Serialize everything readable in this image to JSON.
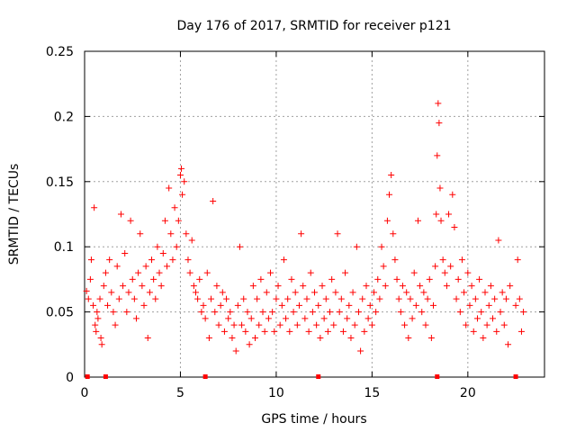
{
  "chart_data": {
    "type": "scatter",
    "title": "Day 176 of 2017, SRMTID for receiver p121",
    "xlabel": "GPS time / hours",
    "ylabel": "SRMTID / TECUs",
    "xlim": [
      0,
      24
    ],
    "ylim": [
      0,
      0.25
    ],
    "xticks": [
      0,
      5,
      10,
      15,
      20
    ],
    "xtick_labels": [
      "0",
      "5",
      "10",
      "15",
      "20"
    ],
    "yticks": [
      0,
      0.05,
      0.1,
      0.15,
      0.2,
      0.25
    ],
    "ytick_labels": [
      "0",
      "0.05",
      "0.1",
      "0.15",
      "0.2",
      "0.25"
    ],
    "grid": true,
    "marker": "+",
    "color": "#ff0000",
    "series": [
      {
        "name": "SRMTID",
        "points": [
          [
            0.1,
            0.066
          ],
          [
            0.2,
            0.06
          ],
          [
            0.3,
            0.075
          ],
          [
            0.35,
            0.09
          ],
          [
            0.45,
            0.055
          ],
          [
            0.5,
            0.13
          ],
          [
            0.55,
            0.04
          ],
          [
            0.6,
            0.035
          ],
          [
            0.65,
            0.05
          ],
          [
            0.7,
            0.045
          ],
          [
            0.8,
            0.06
          ],
          [
            0.85,
            0.03
          ],
          [
            0.9,
            0.025
          ],
          [
            1.0,
            0.07
          ],
          [
            1.1,
            0.08
          ],
          [
            1.2,
            0.055
          ],
          [
            1.3,
            0.09
          ],
          [
            1.4,
            0.065
          ],
          [
            1.5,
            0.05
          ],
          [
            1.6,
            0.04
          ],
          [
            1.7,
            0.085
          ],
          [
            1.8,
            0.06
          ],
          [
            1.9,
            0.125
          ],
          [
            2.0,
            0.07
          ],
          [
            2.1,
            0.095
          ],
          [
            2.2,
            0.05
          ],
          [
            2.3,
            0.065
          ],
          [
            2.4,
            0.12
          ],
          [
            2.5,
            0.075
          ],
          [
            2.6,
            0.06
          ],
          [
            2.7,
            0.045
          ],
          [
            2.8,
            0.08
          ],
          [
            2.9,
            0.11
          ],
          [
            3.0,
            0.07
          ],
          [
            3.1,
            0.055
          ],
          [
            3.2,
            0.085
          ],
          [
            3.3,
            0.03
          ],
          [
            3.4,
            0.065
          ],
          [
            3.5,
            0.09
          ],
          [
            3.6,
            0.075
          ],
          [
            3.7,
            0.06
          ],
          [
            3.8,
            0.1
          ],
          [
            3.9,
            0.08
          ],
          [
            4.0,
            0.07
          ],
          [
            4.1,
            0.095
          ],
          [
            4.2,
            0.12
          ],
          [
            4.3,
            0.085
          ],
          [
            4.4,
            0.145
          ],
          [
            4.5,
            0.11
          ],
          [
            4.6,
            0.09
          ],
          [
            4.7,
            0.13
          ],
          [
            4.8,
            0.1
          ],
          [
            4.9,
            0.12
          ],
          [
            5.0,
            0.155
          ],
          [
            5.05,
            0.16
          ],
          [
            5.1,
            0.14
          ],
          [
            5.2,
            0.15
          ],
          [
            5.3,
            0.11
          ],
          [
            5.4,
            0.09
          ],
          [
            5.5,
            0.08
          ],
          [
            5.6,
            0.105
          ],
          [
            5.7,
            0.07
          ],
          [
            5.8,
            0.065
          ],
          [
            5.9,
            0.06
          ],
          [
            6.0,
            0.075
          ],
          [
            6.1,
            0.05
          ],
          [
            6.2,
            0.055
          ],
          [
            6.3,
            0.045
          ],
          [
            6.4,
            0.08
          ],
          [
            6.5,
            0.03
          ],
          [
            6.6,
            0.06
          ],
          [
            6.7,
            0.135
          ],
          [
            6.8,
            0.05
          ],
          [
            6.9,
            0.07
          ],
          [
            7.0,
            0.04
          ],
          [
            7.1,
            0.055
          ],
          [
            7.2,
            0.065
          ],
          [
            7.3,
            0.035
          ],
          [
            7.4,
            0.06
          ],
          [
            7.5,
            0.045
          ],
          [
            7.6,
            0.05
          ],
          [
            7.7,
            0.03
          ],
          [
            7.8,
            0.04
          ],
          [
            7.9,
            0.02
          ],
          [
            8.0,
            0.055
          ],
          [
            8.1,
            0.1
          ],
          [
            8.2,
            0.04
          ],
          [
            8.3,
            0.06
          ],
          [
            8.4,
            0.035
          ],
          [
            8.5,
            0.05
          ],
          [
            8.6,
            0.025
          ],
          [
            8.7,
            0.045
          ],
          [
            8.8,
            0.07
          ],
          [
            8.9,
            0.03
          ],
          [
            9.0,
            0.06
          ],
          [
            9.1,
            0.04
          ],
          [
            9.2,
            0.075
          ],
          [
            9.3,
            0.05
          ],
          [
            9.4,
            0.035
          ],
          [
            9.5,
            0.065
          ],
          [
            9.6,
            0.045
          ],
          [
            9.7,
            0.08
          ],
          [
            9.8,
            0.05
          ],
          [
            9.9,
            0.035
          ],
          [
            10.0,
            0.06
          ],
          [
            10.1,
            0.07
          ],
          [
            10.2,
            0.04
          ],
          [
            10.3,
            0.055
          ],
          [
            10.4,
            0.09
          ],
          [
            10.5,
            0.045
          ],
          [
            10.6,
            0.06
          ],
          [
            10.7,
            0.035
          ],
          [
            10.8,
            0.075
          ],
          [
            10.9,
            0.05
          ],
          [
            11.0,
            0.065
          ],
          [
            11.1,
            0.04
          ],
          [
            11.2,
            0.055
          ],
          [
            11.3,
            0.11
          ],
          [
            11.4,
            0.07
          ],
          [
            11.5,
            0.045
          ],
          [
            11.6,
            0.06
          ],
          [
            11.7,
            0.035
          ],
          [
            11.8,
            0.08
          ],
          [
            11.9,
            0.05
          ],
          [
            12.0,
            0.065
          ],
          [
            12.1,
            0.04
          ],
          [
            12.2,
            0.055
          ],
          [
            12.3,
            0.03
          ],
          [
            12.4,
            0.07
          ],
          [
            12.5,
            0.045
          ],
          [
            12.6,
            0.06
          ],
          [
            12.7,
            0.035
          ],
          [
            12.8,
            0.05
          ],
          [
            12.9,
            0.075
          ],
          [
            13.0,
            0.04
          ],
          [
            13.1,
            0.065
          ],
          [
            13.2,
            0.11
          ],
          [
            13.3,
            0.05
          ],
          [
            13.4,
            0.06
          ],
          [
            13.5,
            0.035
          ],
          [
            13.6,
            0.08
          ],
          [
            13.7,
            0.045
          ],
          [
            13.8,
            0.055
          ],
          [
            13.9,
            0.03
          ],
          [
            14.0,
            0.065
          ],
          [
            14.1,
            0.04
          ],
          [
            14.2,
            0.1
          ],
          [
            14.3,
            0.05
          ],
          [
            14.4,
            0.02
          ],
          [
            14.5,
            0.06
          ],
          [
            14.6,
            0.035
          ],
          [
            14.7,
            0.07
          ],
          [
            14.8,
            0.045
          ],
          [
            14.9,
            0.055
          ],
          [
            15.0,
            0.04
          ],
          [
            15.1,
            0.065
          ],
          [
            15.2,
            0.05
          ],
          [
            15.3,
            0.075
          ],
          [
            15.4,
            0.06
          ],
          [
            15.5,
            0.1
          ],
          [
            15.6,
            0.085
          ],
          [
            15.7,
            0.07
          ],
          [
            15.8,
            0.12
          ],
          [
            15.9,
            0.14
          ],
          [
            16.0,
            0.155
          ],
          [
            16.1,
            0.11
          ],
          [
            16.2,
            0.09
          ],
          [
            16.3,
            0.075
          ],
          [
            16.4,
            0.06
          ],
          [
            16.5,
            0.05
          ],
          [
            16.6,
            0.07
          ],
          [
            16.7,
            0.04
          ],
          [
            16.8,
            0.065
          ],
          [
            16.9,
            0.03
          ],
          [
            17.0,
            0.06
          ],
          [
            17.1,
            0.045
          ],
          [
            17.2,
            0.08
          ],
          [
            17.3,
            0.055
          ],
          [
            17.4,
            0.12
          ],
          [
            17.5,
            0.07
          ],
          [
            17.6,
            0.05
          ],
          [
            17.7,
            0.065
          ],
          [
            17.8,
            0.04
          ],
          [
            17.9,
            0.06
          ],
          [
            18.0,
            0.075
          ],
          [
            18.1,
            0.03
          ],
          [
            18.2,
            0.055
          ],
          [
            18.3,
            0.085
          ],
          [
            18.35,
            0.125
          ],
          [
            18.4,
            0.17
          ],
          [
            18.45,
            0.21
          ],
          [
            18.5,
            0.195
          ],
          [
            18.55,
            0.145
          ],
          [
            18.6,
            0.12
          ],
          [
            18.7,
            0.09
          ],
          [
            18.8,
            0.08
          ],
          [
            18.9,
            0.07
          ],
          [
            19.0,
            0.125
          ],
          [
            19.1,
            0.085
          ],
          [
            19.2,
            0.14
          ],
          [
            19.3,
            0.115
          ],
          [
            19.4,
            0.06
          ],
          [
            19.5,
            0.075
          ],
          [
            19.6,
            0.05
          ],
          [
            19.7,
            0.09
          ],
          [
            19.8,
            0.065
          ],
          [
            19.9,
            0.04
          ],
          [
            20.0,
            0.08
          ],
          [
            20.1,
            0.055
          ],
          [
            20.2,
            0.07
          ],
          [
            20.3,
            0.035
          ],
          [
            20.4,
            0.06
          ],
          [
            20.5,
            0.045
          ],
          [
            20.6,
            0.075
          ],
          [
            20.7,
            0.05
          ],
          [
            20.8,
            0.03
          ],
          [
            20.9,
            0.065
          ],
          [
            21.0,
            0.04
          ],
          [
            21.1,
            0.055
          ],
          [
            21.2,
            0.07
          ],
          [
            21.3,
            0.045
          ],
          [
            21.4,
            0.06
          ],
          [
            21.5,
            0.035
          ],
          [
            21.6,
            0.105
          ],
          [
            21.7,
            0.05
          ],
          [
            21.8,
            0.065
          ],
          [
            21.9,
            0.04
          ],
          [
            22.0,
            0.06
          ],
          [
            22.1,
            0.025
          ],
          [
            22.2,
            0.07
          ],
          [
            22.5,
            0.055
          ],
          [
            22.6,
            0.09
          ],
          [
            22.7,
            0.06
          ],
          [
            22.8,
            0.035
          ],
          [
            22.9,
            0.05
          ]
        ]
      }
    ],
    "axis_markers_x": [
      0.15,
      1.1,
      6.3,
      12.2,
      18.4,
      22.5
    ]
  }
}
